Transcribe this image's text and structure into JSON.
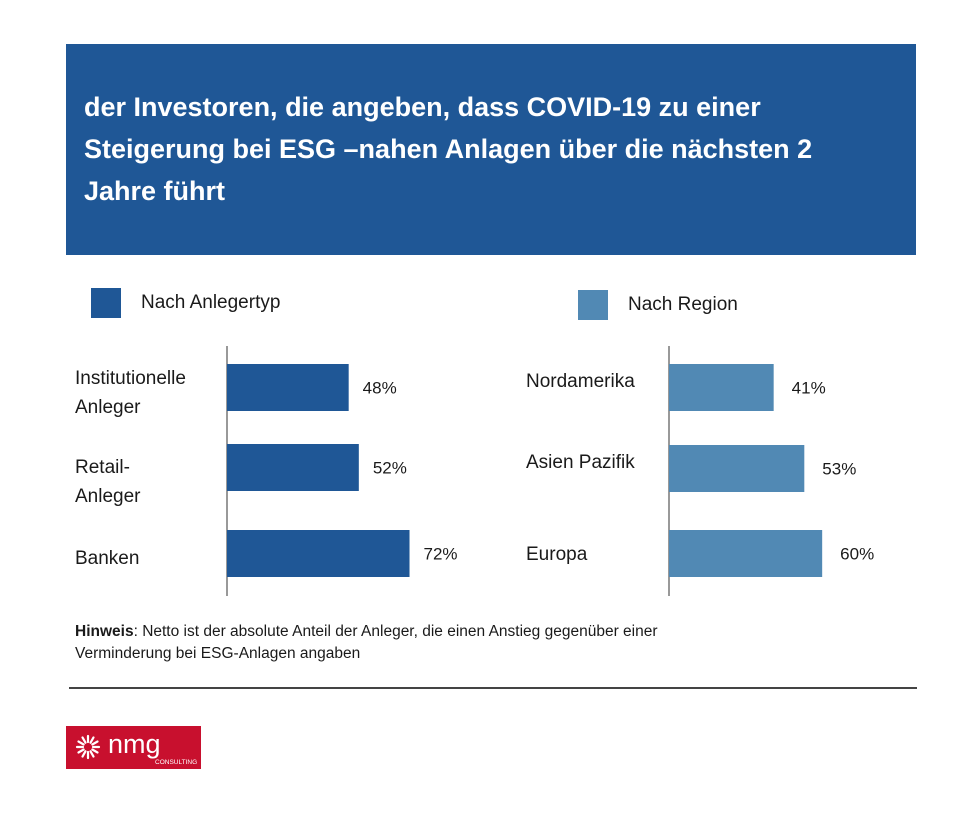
{
  "banner": {
    "title": "der Investoren, die angeben, dass COVID-19 zu einer Steigerung bei ESG –nahen Anlagen über die nächsten 2 Jahre führt"
  },
  "legend": {
    "left_label": "Nach Anlegertyp",
    "right_label": "Nach Region"
  },
  "chart_data": [
    {
      "type": "bar",
      "orientation": "horizontal",
      "title": "",
      "series": [
        {
          "name": "Nach Anlegertyp",
          "values": [
            48,
            52,
            72
          ],
          "color": "#1f5796"
        }
      ],
      "categories": [
        "Institutionelle Anleger",
        "Retail-Anleger",
        "Banken"
      ],
      "category_lines": [
        [
          "Institutionelle",
          "Anleger"
        ],
        [
          "Retail-",
          "Anleger"
        ],
        [
          "Banken"
        ]
      ],
      "data_labels": [
        "48%",
        "52%",
        "72%"
      ],
      "xlim": [
        0,
        100
      ],
      "unit": "%"
    },
    {
      "type": "bar",
      "orientation": "horizontal",
      "title": "",
      "series": [
        {
          "name": "Nach Region",
          "values": [
            41,
            53,
            60
          ],
          "color": "#5189b4"
        }
      ],
      "categories": [
        "Nordamerika",
        "Asien Pazifik",
        "Europa"
      ],
      "category_lines": [
        [
          "Nordamerika"
        ],
        [
          "Asien Pazifik"
        ],
        [
          "Europa"
        ]
      ],
      "data_labels": [
        "41%",
        "53%",
        "60%"
      ],
      "xlim": [
        0,
        100
      ],
      "unit": "%"
    }
  ],
  "note": {
    "bold": "Hinweis",
    "text": ": Netto ist der absolute Anteil der Anleger, die einen Anstieg gegenüber einer Verminderung bei ESG-Anlagen angaben"
  },
  "logo": {
    "wordmark": "nmg",
    "tagline": "CONSULTING"
  },
  "colors": {
    "banner": "#1f5796",
    "series_left": "#1f5796",
    "series_right": "#5189b4",
    "logo_bg": "#c8102e"
  }
}
